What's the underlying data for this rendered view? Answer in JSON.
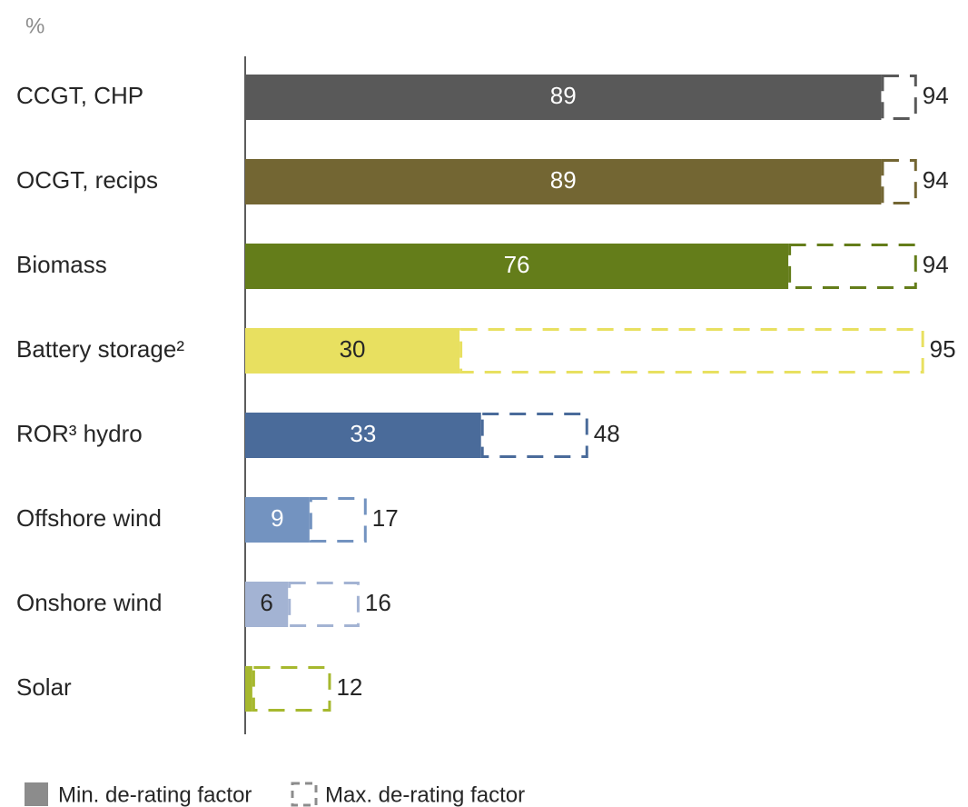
{
  "chart_data": {
    "type": "range-bar",
    "unit_label": "%",
    "categories": [
      "CCGT, CHP",
      "OCGT, recips",
      "Biomass",
      "Battery storage²",
      "ROR³ hydro",
      "Offshore wind",
      "Onshore wind",
      "Solar"
    ],
    "colors": [
      "#595959",
      "#736633",
      "#647d1a",
      "#e8e060",
      "#4a6b9a",
      "#7393c0",
      "#a3b3d3",
      "#a6b82e"
    ],
    "series": [
      {
        "name": "Min. de-rating factor",
        "color": "#8c8c8c",
        "values": [
          89,
          89,
          76,
          30,
          33,
          9,
          6,
          1
        ],
        "value_labels": [
          "89",
          "89",
          "76",
          "30",
          "33",
          "9",
          "6",
          null
        ]
      },
      {
        "name": "Max. de-rating factor",
        "color": "#8c8c8c",
        "values": [
          94,
          94,
          94,
          95,
          48,
          17,
          16,
          12
        ]
      }
    ],
    "xlim": [
      0,
      100
    ]
  }
}
